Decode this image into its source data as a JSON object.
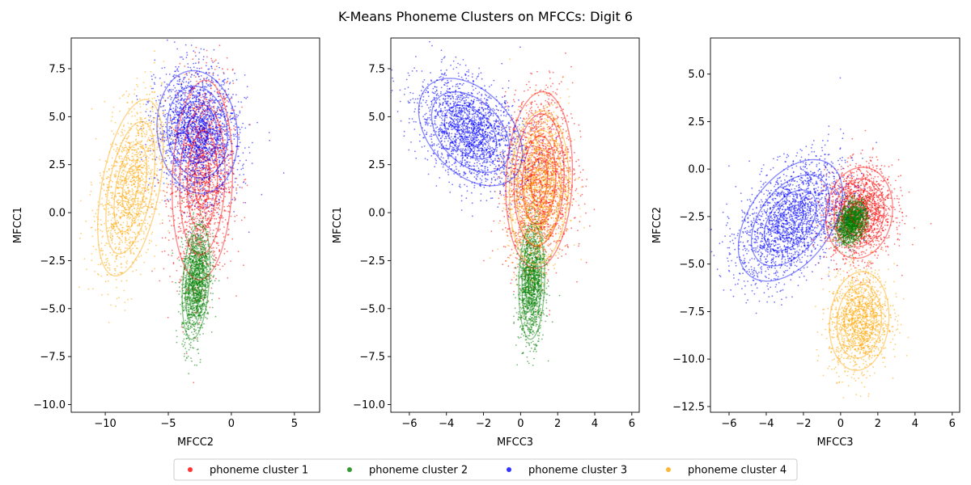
{
  "chart_data": [
    {
      "type": "scatter",
      "title": "K-Means Phoneme Clusters on MFCCs: Digit 6",
      "xlabel": "MFCC2",
      "ylabel": "MFCC1",
      "xlim": [
        -12.7,
        7.0
      ],
      "ylim": [
        -10.4,
        9.1
      ],
      "xticks": [
        -10,
        -5,
        0,
        5
      ],
      "xtick_labels": [
        "−10",
        "−5",
        "0",
        "5"
      ],
      "yticks": [
        -10.0,
        -7.5,
        -5.0,
        -2.5,
        0.0,
        2.5,
        5.0,
        7.5
      ],
      "ytick_labels": [
        "−10.0",
        "−7.5",
        "−5.0",
        "−2.5",
        "0.0",
        "2.5",
        "5.0",
        "7.5"
      ],
      "series": [
        {
          "name": "phoneme cluster 1",
          "color": "#ff0000",
          "cx": -2.3,
          "cy": 1.7,
          "sx": 1.2,
          "sy": 2.6,
          "rho": 0.1,
          "n": 1700
        },
        {
          "name": "phoneme cluster 2",
          "color": "#008000",
          "cx": -2.8,
          "cy": -3.6,
          "sx": 0.55,
          "sy": 1.5,
          "rho": 0.3,
          "n": 1300
        },
        {
          "name": "phoneme cluster 3",
          "color": "#0000ff",
          "cx": -2.7,
          "cy": 4.2,
          "sx": 1.6,
          "sy": 1.6,
          "rho": -0.1,
          "n": 2000
        },
        {
          "name": "phoneme cluster 4",
          "color": "#ffa500",
          "cx": -8.0,
          "cy": 1.3,
          "sx": 1.3,
          "sy": 2.3,
          "rho": 0.45,
          "n": 1300
        }
      ]
    },
    {
      "type": "scatter",
      "title": "",
      "xlabel": "MFCC3",
      "ylabel": "MFCC1",
      "xlim": [
        -7.0,
        6.4
      ],
      "ylim": [
        -10.4,
        9.1
      ],
      "xticks": [
        -6,
        -4,
        -2,
        0,
        2,
        4,
        6
      ],
      "xtick_labels": [
        "−6",
        "−4",
        "−2",
        "0",
        "2",
        "4",
        "6"
      ],
      "yticks": [
        -10.0,
        -7.5,
        -5.0,
        -2.5,
        0.0,
        2.5,
        5.0,
        7.5
      ],
      "ytick_labels": [
        "−10.0",
        "−7.5",
        "−5.0",
        "−2.5",
        "0.0",
        "2.5",
        "5.0",
        "7.5"
      ],
      "series": [
        {
          "name": "phoneme cluster 1",
          "color": "#ff0000",
          "cx": 1.0,
          "cy": 1.7,
          "sx": 0.9,
          "sy": 2.3,
          "rho": 0.1,
          "n": 1700
        },
        {
          "name": "phoneme cluster 2",
          "color": "#008000",
          "cx": 0.6,
          "cy": -3.6,
          "sx": 0.35,
          "sy": 1.5,
          "rho": 0.1,
          "n": 1300
        },
        {
          "name": "phoneme cluster 3",
          "color": "#0000ff",
          "cx": -2.7,
          "cy": 4.2,
          "sx": 1.4,
          "sy": 1.4,
          "rho": -0.4,
          "n": 2000
        },
        {
          "name": "phoneme cluster 4",
          "color": "#ffa500",
          "cx": 1.0,
          "cy": 1.3,
          "sx": 0.8,
          "sy": 2.0,
          "rho": 0.1,
          "n": 1300
        }
      ]
    },
    {
      "type": "scatter",
      "title": "",
      "xlabel": "MFCC3",
      "ylabel": "MFCC2",
      "xlim": [
        -7.0,
        6.4
      ],
      "ylim": [
        -12.8,
        6.9
      ],
      "xticks": [
        -6,
        -4,
        -2,
        0,
        2,
        4,
        6
      ],
      "xtick_labels": [
        "−6",
        "−4",
        "−2",
        "0",
        "2",
        "4",
        "6"
      ],
      "yticks": [
        -12.5,
        -10.0,
        -7.5,
        -5.0,
        -2.5,
        0.0,
        2.5,
        5.0
      ],
      "ytick_labels": [
        "−12.5",
        "−10.0",
        "−7.5",
        "−5.0",
        "−2.5",
        "0.0",
        "2.5",
        "5.0"
      ],
      "series": [
        {
          "name": "phoneme cluster 1",
          "color": "#ff0000",
          "cx": 1.0,
          "cy": -2.3,
          "sx": 0.9,
          "sy": 1.2,
          "rho": 0.1,
          "n": 1700
        },
        {
          "name": "phoneme cluster 2",
          "color": "#008000",
          "cx": 0.6,
          "cy": -2.8,
          "sx": 0.4,
          "sy": 0.55,
          "rho": 0.3,
          "n": 1300
        },
        {
          "name": "phoneme cluster 3",
          "color": "#0000ff",
          "cx": -2.7,
          "cy": -2.7,
          "sx": 1.4,
          "sy": 1.6,
          "rho": 0.45,
          "n": 2000
        },
        {
          "name": "phoneme cluster 4",
          "color": "#ffa500",
          "cx": 1.0,
          "cy": -8.0,
          "sx": 0.8,
          "sy": 1.3,
          "rho": 0.1,
          "n": 1300
        }
      ]
    }
  ],
  "legend": {
    "placement": "bottom-center",
    "items": [
      {
        "label": "phoneme cluster 1",
        "color": "#ff0000"
      },
      {
        "label": "phoneme cluster 2",
        "color": "#008000"
      },
      {
        "label": "phoneme cluster 3",
        "color": "#0000ff"
      },
      {
        "label": "phoneme cluster 4",
        "color": "#ffa500"
      }
    ]
  }
}
